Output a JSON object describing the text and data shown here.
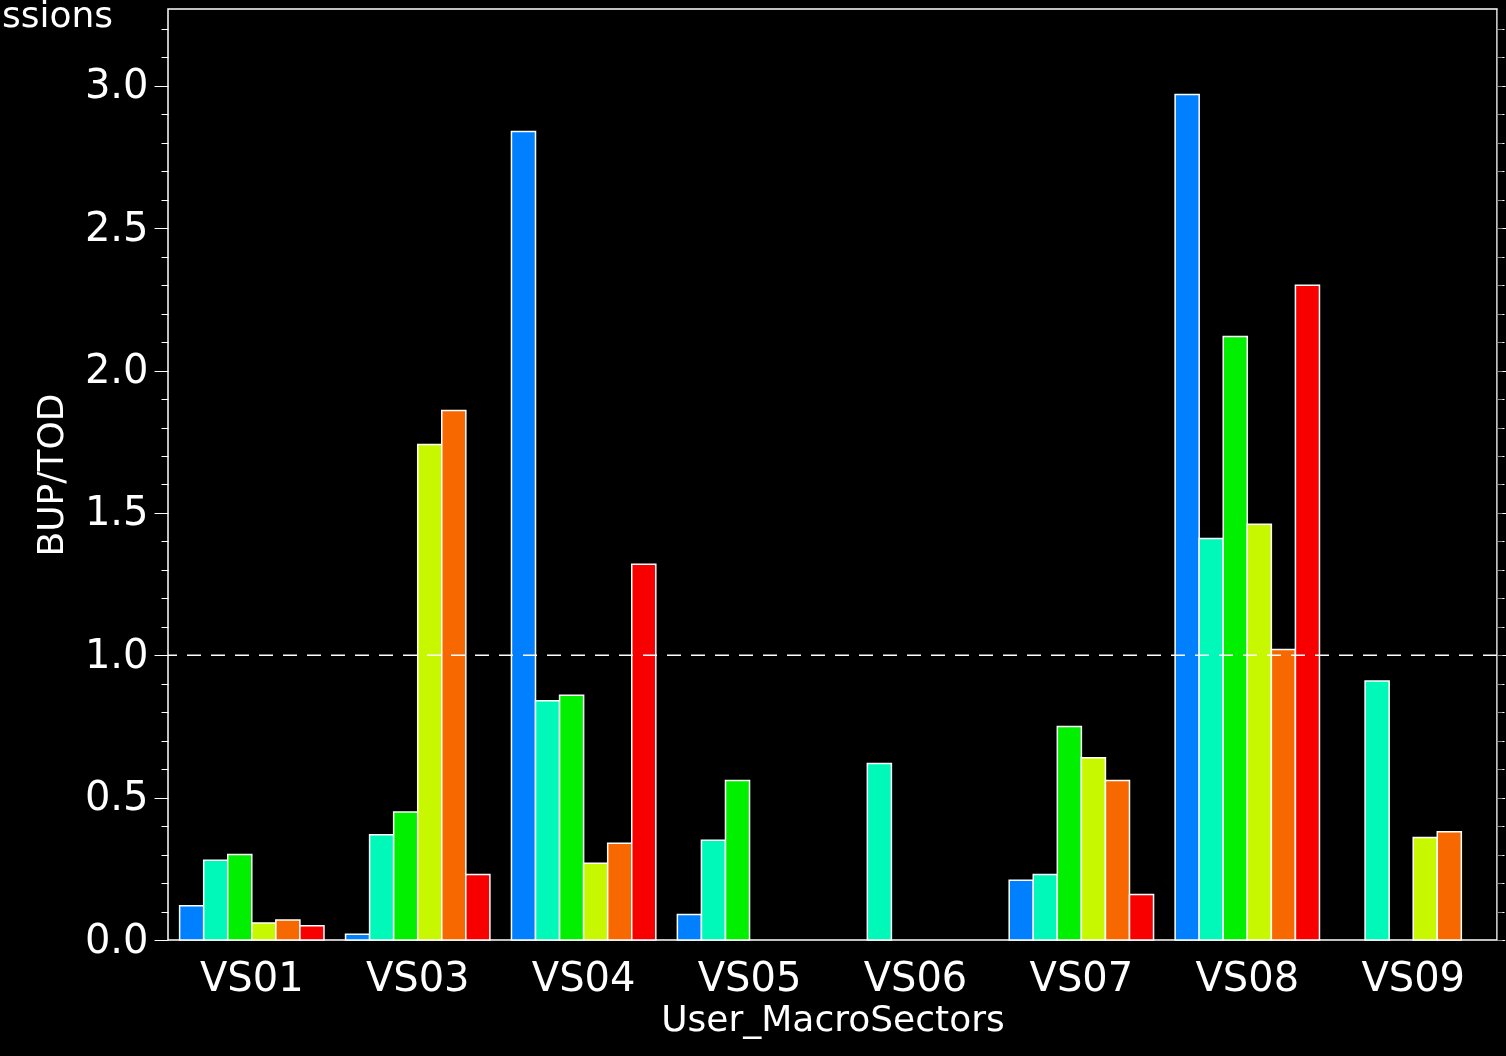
{
  "chart_data": {
    "type": "bar",
    "title": "ssions",
    "xlabel": "User_MacroSectors",
    "ylabel": "BUP/TOD",
    "categories": [
      "VS01",
      "VS03",
      "VS04",
      "VS05",
      "VS06",
      "VS07",
      "VS08",
      "VS09"
    ],
    "series": [
      {
        "color": "#0080ff",
        "values": [
          0.12,
          0.02,
          2.84,
          0.09,
          null,
          0.21,
          2.97,
          null
        ]
      },
      {
        "color": "#00f8b8",
        "values": [
          0.28,
          0.37,
          0.84,
          0.35,
          0.62,
          0.23,
          1.41,
          0.91
        ]
      },
      {
        "color": "#00f000",
        "values": [
          0.3,
          0.45,
          0.86,
          0.56,
          null,
          0.75,
          2.12,
          null
        ]
      },
      {
        "color": "#c8f800",
        "values": [
          0.06,
          1.74,
          0.27,
          null,
          null,
          0.64,
          1.46,
          0.36
        ]
      },
      {
        "color": "#f86800",
        "values": [
          0.07,
          1.86,
          0.34,
          null,
          null,
          0.56,
          1.02,
          0.38
        ]
      },
      {
        "color": "#f80000",
        "values": [
          0.05,
          0.23,
          1.32,
          null,
          null,
          0.16,
          2.3,
          null
        ]
      }
    ],
    "ylim": [
      0,
      3.27
    ],
    "yticks": [
      {
        "value": 0,
        "label": "0.0"
      },
      {
        "value": 0.1,
        "label": null
      },
      {
        "value": 0.2,
        "label": null
      },
      {
        "value": 0.3,
        "label": null
      },
      {
        "value": 0.4,
        "label": null
      },
      {
        "value": 0.5,
        "label": "0.5"
      },
      {
        "value": 0.6,
        "label": null
      },
      {
        "value": 0.7,
        "label": null
      },
      {
        "value": 0.8,
        "label": null
      },
      {
        "value": 0.9,
        "label": null
      },
      {
        "value": 1,
        "label": "1.0"
      },
      {
        "value": 1.1,
        "label": null
      },
      {
        "value": 1.2,
        "label": null
      },
      {
        "value": 1.3,
        "label": null
      },
      {
        "value": 1.4,
        "label": null
      },
      {
        "value": 1.5,
        "label": "1.5"
      },
      {
        "value": 1.6,
        "label": null
      },
      {
        "value": 1.7,
        "label": null
      },
      {
        "value": 1.8,
        "label": null
      },
      {
        "value": 1.9,
        "label": null
      },
      {
        "value": 2,
        "label": "2.0"
      },
      {
        "value": 2.1,
        "label": null
      },
      {
        "value": 2.2,
        "label": null
      },
      {
        "value": 2.3,
        "label": null
      },
      {
        "value": 2.4,
        "label": null
      },
      {
        "value": 2.5,
        "label": "2.5"
      },
      {
        "value": 2.6,
        "label": null
      },
      {
        "value": 2.7,
        "label": null
      },
      {
        "value": 2.8,
        "label": null
      },
      {
        "value": 2.9,
        "label": null
      },
      {
        "value": 3,
        "label": "3.0"
      },
      {
        "value": 3.1,
        "label": null
      },
      {
        "value": 3.2,
        "label": null
      }
    ],
    "ref_lines": [
      {
        "axis": "y",
        "value": 1,
        "color": "#ffffff",
        "line_style": "dashed"
      }
    ],
    "grid": false,
    "legend": false
  }
}
